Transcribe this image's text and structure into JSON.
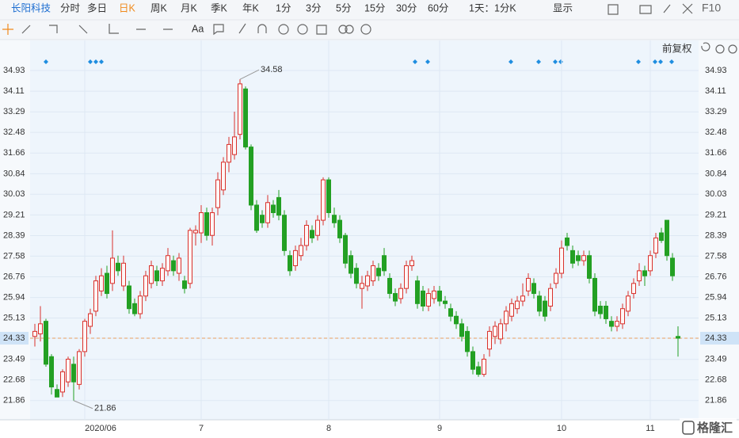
{
  "toolbar": {
    "stock": "长阳科技",
    "periods": [
      "分时",
      "多日",
      "日K",
      "周K",
      "月K",
      "季K",
      "年K",
      "1分",
      "3分",
      "5分",
      "15分",
      "30分",
      "60分",
      "1天：1分K"
    ],
    "display": "显示",
    "f10": "F10",
    "text_tool": "Aa",
    "adjust": "前复权"
  },
  "watermark": "格隆汇",
  "chart_data": {
    "type": "candlestick",
    "up_color": "#d9312b",
    "down_color": "#23a023",
    "reference_line": 24.33,
    "ylim": [
      21.1,
      35.4
    ],
    "yticks": [
      34.93,
      34.11,
      33.29,
      32.48,
      31.66,
      30.84,
      30.03,
      29.21,
      28.39,
      27.58,
      26.76,
      25.94,
      25.13,
      24.33,
      23.49,
      22.68,
      21.86
    ],
    "xticks": [
      {
        "value": 9,
        "label": "2020/06"
      },
      {
        "value": 30,
        "label": "7"
      },
      {
        "value": 53,
        "label": "8"
      },
      {
        "value": 73,
        "label": "9"
      },
      {
        "value": 95,
        "label": "10"
      },
      {
        "value": 111,
        "label": "11"
      }
    ],
    "grid": true,
    "annotations": [
      {
        "text": "34.58",
        "index": 37,
        "value": 34.58
      },
      {
        "text": "21.86",
        "index": 7,
        "value": 21.86
      }
    ],
    "candles": [
      [
        24.4,
        24.9,
        24.0,
        24.6
      ],
      [
        24.5,
        25.6,
        24.2,
        24.9
      ],
      [
        25.0,
        25.1,
        23.2,
        23.3
      ],
      [
        23.6,
        23.7,
        22.1,
        22.4
      ],
      [
        22.3,
        22.5,
        22.0,
        22.0
      ],
      [
        22.2,
        23.1,
        22.0,
        23.0
      ],
      [
        22.6,
        23.6,
        22.4,
        23.5
      ],
      [
        23.3,
        23.6,
        21.86,
        22.6
      ],
      [
        22.5,
        23.9,
        22.3,
        23.8
      ],
      [
        23.8,
        25.1,
        23.6,
        25.0
      ],
      [
        24.8,
        25.5,
        24.5,
        25.3
      ],
      [
        25.4,
        26.8,
        25.2,
        26.6
      ],
      [
        26.2,
        27.1,
        26.0,
        26.8
      ],
      [
        26.9,
        27.2,
        25.9,
        26.1
      ],
      [
        26.5,
        28.6,
        26.2,
        27.5
      ],
      [
        27.3,
        27.6,
        26.8,
        27.0
      ],
      [
        26.4,
        27.6,
        26.2,
        27.3
      ],
      [
        26.4,
        26.6,
        25.3,
        25.5
      ],
      [
        25.7,
        25.9,
        25.2,
        25.3
      ],
      [
        25.3,
        26.2,
        25.1,
        26.0
      ],
      [
        26.0,
        27.0,
        25.8,
        26.8
      ],
      [
        26.5,
        27.4,
        26.3,
        27.2
      ],
      [
        27.0,
        27.2,
        26.4,
        26.6
      ],
      [
        26.6,
        27.3,
        26.4,
        27.1
      ],
      [
        27.0,
        27.9,
        26.8,
        27.6
      ],
      [
        27.4,
        27.6,
        26.8,
        27.0
      ],
      [
        26.9,
        27.7,
        26.6,
        27.5
      ],
      [
        26.6,
        26.8,
        26.1,
        26.3
      ],
      [
        26.5,
        28.7,
        26.3,
        28.6
      ],
      [
        28.5,
        28.8,
        28.0,
        28.6
      ],
      [
        28.5,
        29.6,
        28.1,
        29.3
      ],
      [
        29.3,
        29.5,
        28.2,
        28.4
      ],
      [
        28.4,
        29.5,
        28.0,
        29.3
      ],
      [
        29.5,
        30.9,
        29.2,
        30.6
      ],
      [
        30.2,
        31.5,
        30.0,
        31.3
      ],
      [
        31.3,
        32.3,
        30.9,
        32.0
      ],
      [
        31.6,
        33.3,
        31.4,
        32.3
      ],
      [
        32.4,
        34.58,
        32.2,
        34.4
      ],
      [
        34.2,
        34.3,
        31.8,
        31.9
      ],
      [
        31.9,
        32.0,
        29.4,
        29.6
      ],
      [
        29.6,
        29.8,
        28.5,
        28.6
      ],
      [
        29.2,
        29.4,
        28.7,
        28.9
      ],
      [
        28.9,
        30.0,
        28.7,
        29.7
      ],
      [
        29.6,
        29.8,
        29.1,
        29.3
      ],
      [
        29.9,
        30.2,
        29.0,
        29.2
      ],
      [
        29.2,
        29.4,
        27.6,
        27.8
      ],
      [
        27.6,
        27.8,
        26.8,
        27.0
      ],
      [
        27.2,
        28.0,
        27.0,
        27.8
      ],
      [
        27.6,
        28.3,
        27.4,
        28.0
      ],
      [
        28.0,
        29.0,
        27.8,
        28.8
      ],
      [
        28.6,
        28.8,
        28.1,
        28.3
      ],
      [
        28.4,
        29.2,
        28.2,
        29.0
      ],
      [
        29.0,
        30.7,
        28.8,
        30.6
      ],
      [
        30.6,
        30.7,
        29.1,
        29.3
      ],
      [
        29.2,
        29.5,
        28.7,
        28.9
      ],
      [
        29.0,
        29.2,
        28.1,
        28.3
      ],
      [
        28.4,
        28.5,
        27.1,
        27.3
      ],
      [
        27.6,
        27.8,
        26.7,
        26.9
      ],
      [
        27.1,
        27.3,
        26.3,
        26.5
      ],
      [
        26.3,
        26.8,
        25.5,
        26.5
      ],
      [
        26.4,
        27.0,
        26.2,
        26.8
      ],
      [
        26.6,
        27.4,
        26.4,
        27.2
      ],
      [
        27.1,
        27.3,
        26.6,
        26.8
      ],
      [
        27.6,
        27.9,
        26.8,
        27.0
      ],
      [
        26.7,
        26.9,
        25.9,
        26.1
      ],
      [
        26.1,
        26.3,
        25.6,
        25.8
      ],
      [
        25.9,
        26.5,
        25.7,
        26.3
      ],
      [
        26.3,
        27.4,
        26.1,
        27.2
      ],
      [
        27.2,
        27.6,
        27.0,
        27.4
      ],
      [
        26.6,
        26.8,
        25.5,
        25.7
      ],
      [
        26.2,
        26.4,
        25.4,
        25.6
      ],
      [
        25.6,
        26.3,
        25.4,
        26.1
      ],
      [
        25.9,
        26.4,
        25.7,
        26.2
      ],
      [
        26.2,
        26.4,
        25.6,
        25.8
      ],
      [
        25.8,
        26.0,
        25.5,
        25.7
      ],
      [
        25.5,
        25.7,
        25.0,
        25.2
      ],
      [
        25.2,
        25.4,
        24.7,
        24.9
      ],
      [
        24.9,
        25.1,
        24.2,
        24.4
      ],
      [
        24.6,
        24.8,
        23.6,
        23.8
      ],
      [
        23.8,
        24.0,
        22.9,
        23.1
      ],
      [
        23.2,
        23.4,
        22.8,
        22.9
      ],
      [
        22.9,
        23.7,
        22.8,
        23.5
      ],
      [
        23.9,
        24.8,
        23.6,
        24.6
      ],
      [
        24.4,
        25.0,
        24.1,
        24.8
      ],
      [
        24.3,
        25.1,
        24.1,
        24.9
      ],
      [
        24.9,
        25.6,
        24.6,
        25.4
      ],
      [
        25.2,
        25.9,
        25.0,
        25.7
      ],
      [
        25.5,
        26.0,
        25.3,
        25.8
      ],
      [
        25.8,
        26.5,
        25.6,
        26.0
      ],
      [
        26.2,
        26.9,
        26.0,
        26.7
      ],
      [
        26.5,
        26.7,
        25.9,
        26.1
      ],
      [
        26.0,
        26.2,
        25.2,
        25.4
      ],
      [
        25.8,
        26.0,
        25.0,
        25.2
      ],
      [
        25.6,
        26.5,
        25.4,
        26.3
      ],
      [
        26.5,
        27.1,
        26.3,
        26.9
      ],
      [
        26.9,
        28.2,
        26.7,
        27.9
      ],
      [
        28.3,
        28.5,
        27.8,
        28.0
      ],
      [
        27.8,
        28.0,
        27.1,
        27.3
      ],
      [
        27.6,
        27.8,
        27.2,
        27.4
      ],
      [
        27.4,
        27.8,
        27.2,
        27.6
      ],
      [
        27.6,
        27.8,
        26.5,
        26.7
      ],
      [
        26.7,
        26.9,
        25.2,
        25.4
      ],
      [
        25.6,
        25.8,
        25.1,
        25.3
      ],
      [
        25.6,
        25.8,
        24.9,
        25.1
      ],
      [
        25.0,
        25.2,
        24.6,
        24.8
      ],
      [
        24.8,
        25.2,
        24.6,
        25.0
      ],
      [
        24.9,
        25.7,
        24.7,
        25.5
      ],
      [
        25.4,
        26.2,
        25.2,
        26.0
      ],
      [
        26.1,
        26.7,
        25.9,
        26.5
      ],
      [
        26.6,
        27.3,
        26.4,
        27.0
      ],
      [
        27.0,
        27.2,
        26.4,
        26.8
      ],
      [
        27.0,
        27.8,
        26.8,
        27.6
      ],
      [
        27.7,
        28.5,
        27.5,
        28.3
      ],
      [
        28.5,
        28.7,
        28.1,
        28.2
      ],
      [
        29.0,
        29.0,
        27.4,
        27.6
      ],
      [
        27.5,
        27.7,
        26.6,
        26.8
      ],
      [
        24.4,
        24.8,
        23.6,
        24.33
      ]
    ]
  }
}
